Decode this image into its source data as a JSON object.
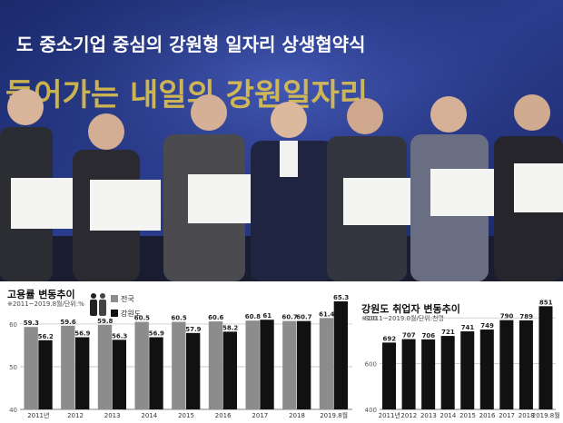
{
  "photo": {
    "banner_line1": "도 중소기업 중심의 강원형 일자리 상생협약식",
    "banner_line2": "들어가는 내일의 강원일자리"
  },
  "chart_data": [
    {
      "type": "bar",
      "title": "고용률 변동추이",
      "note": "※2011~2019.8월/단위:%",
      "legend": [
        "전국",
        "강원도"
      ],
      "categories": [
        "2011년",
        "2012",
        "2013",
        "2014",
        "2015",
        "2016",
        "2017",
        "2018",
        "2019.8월"
      ],
      "series": [
        {
          "name": "전국",
          "color": "#8c8c8c",
          "values": [
            59.3,
            59.6,
            59.8,
            60.5,
            60.5,
            60.6,
            60.8,
            60.7,
            61.4
          ]
        },
        {
          "name": "강원도",
          "color": "#111111",
          "values": [
            56.2,
            56.9,
            56.3,
            56.9,
            57.9,
            58.2,
            61.0,
            60.7,
            65.3
          ]
        }
      ],
      "yticks": [
        40,
        50,
        60
      ],
      "ylim": [
        40,
        67
      ],
      "grid": true
    },
    {
      "type": "bar",
      "title": "강원도 취업자 변동추이",
      "note": "※2011~2019.8월/단위:천명",
      "categories": [
        "2011년",
        "2012",
        "2013",
        "2014",
        "2015",
        "2016",
        "2017",
        "2018",
        "2019.8월"
      ],
      "series": [
        {
          "color": "#111111",
          "values": [
            692,
            707,
            706,
            721,
            741,
            749,
            790,
            789,
            851
          ]
        }
      ],
      "yticks": [
        400,
        600,
        800
      ],
      "ylim": [
        400,
        880
      ],
      "grid": true
    }
  ]
}
